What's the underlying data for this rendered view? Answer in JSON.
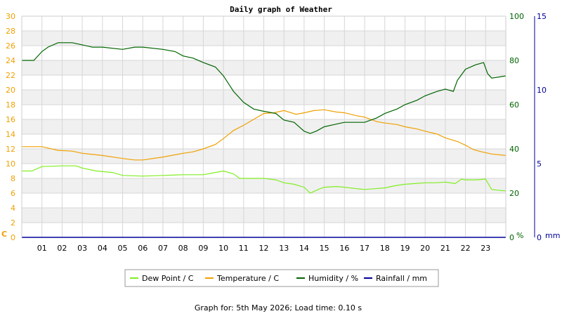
{
  "chart_data": {
    "type": "line",
    "title": "Daily graph of Weather",
    "footer": "Graph for: 5th May 2026; Load time: 0.10 s",
    "x_ticks": [
      "01",
      "02",
      "03",
      "04",
      "05",
      "06",
      "07",
      "08",
      "09",
      "10",
      "11",
      "12",
      "13",
      "14",
      "15",
      "16",
      "17",
      "18",
      "19",
      "20",
      "21",
      "22",
      "23"
    ],
    "x_range": [
      0,
      24
    ],
    "grid": true,
    "legend_position": "bottom",
    "axes": {
      "left": {
        "unit": "C",
        "color": "#f0a000",
        "range": [
          0,
          30
        ],
        "ticks": [
          "0",
          "2",
          "4",
          "6",
          "8",
          "10",
          "12",
          "14",
          "16",
          "18",
          "20",
          "22",
          "24",
          "26",
          "28",
          "30"
        ]
      },
      "right1": {
        "unit": "%",
        "color": "#006400",
        "range": [
          0,
          100
        ],
        "ticks": [
          "0",
          "20",
          "40",
          "60",
          "80",
          "100"
        ]
      },
      "right2": {
        "unit": "mm",
        "color": "#000099",
        "range": [
          0,
          15
        ],
        "ticks": [
          "0",
          "5",
          "10",
          "15"
        ]
      }
    },
    "series": [
      {
        "name": "Dew Point / C",
        "axis": "left",
        "color": "#80ee20",
        "points": [
          [
            0,
            9.0
          ],
          [
            0.5,
            9.0
          ],
          [
            1,
            9.6
          ],
          [
            2,
            9.7
          ],
          [
            2.7,
            9.7
          ],
          [
            3,
            9.4
          ],
          [
            3.7,
            9.0
          ],
          [
            4.5,
            8.8
          ],
          [
            5,
            8.4
          ],
          [
            6,
            8.3
          ],
          [
            7,
            8.4
          ],
          [
            8,
            8.5
          ],
          [
            9,
            8.5
          ],
          [
            9.6,
            8.8
          ],
          [
            10,
            9.0
          ],
          [
            10.5,
            8.6
          ],
          [
            10.8,
            8.0
          ],
          [
            11.5,
            8.0
          ],
          [
            12,
            8.0
          ],
          [
            12.6,
            7.8
          ],
          [
            13,
            7.4
          ],
          [
            13.5,
            7.2
          ],
          [
            14,
            6.8
          ],
          [
            14.3,
            6.0
          ],
          [
            14.7,
            6.5
          ],
          [
            15,
            6.8
          ],
          [
            15.6,
            6.9
          ],
          [
            16,
            6.8
          ],
          [
            16.6,
            6.6
          ],
          [
            17,
            6.5
          ],
          [
            17.5,
            6.6
          ],
          [
            18,
            6.7
          ],
          [
            18.5,
            7.0
          ],
          [
            19,
            7.2
          ],
          [
            19.5,
            7.3
          ],
          [
            20,
            7.4
          ],
          [
            20.5,
            7.4
          ],
          [
            21,
            7.5
          ],
          [
            21.5,
            7.3
          ],
          [
            21.8,
            7.9
          ],
          [
            22,
            7.8
          ],
          [
            22.5,
            7.8
          ],
          [
            23,
            7.9
          ],
          [
            23.3,
            6.5
          ],
          [
            23.6,
            6.4
          ],
          [
            24,
            6.3
          ]
        ]
      },
      {
        "name": "Temperature / C",
        "axis": "left",
        "color": "#f0a000",
        "points": [
          [
            0,
            12.3
          ],
          [
            1,
            12.3
          ],
          [
            1.8,
            11.8
          ],
          [
            2.5,
            11.7
          ],
          [
            3,
            11.4
          ],
          [
            4,
            11.1
          ],
          [
            5,
            10.7
          ],
          [
            5.6,
            10.5
          ],
          [
            6,
            10.5
          ],
          [
            7,
            10.9
          ],
          [
            8,
            11.4
          ],
          [
            8.5,
            11.6
          ],
          [
            9,
            12.0
          ],
          [
            9.6,
            12.6
          ],
          [
            10,
            13.4
          ],
          [
            10.5,
            14.5
          ],
          [
            11,
            15.2
          ],
          [
            11.5,
            16.0
          ],
          [
            12,
            16.8
          ],
          [
            12.5,
            16.9
          ],
          [
            13,
            17.2
          ],
          [
            13.6,
            16.7
          ],
          [
            14,
            16.9
          ],
          [
            14.5,
            17.2
          ],
          [
            15,
            17.3
          ],
          [
            15.6,
            17.0
          ],
          [
            16,
            16.9
          ],
          [
            16.6,
            16.5
          ],
          [
            17,
            16.3
          ],
          [
            17.6,
            15.7
          ],
          [
            18,
            15.5
          ],
          [
            18.6,
            15.3
          ],
          [
            19,
            15.0
          ],
          [
            19.6,
            14.7
          ],
          [
            20,
            14.4
          ],
          [
            20.6,
            14.0
          ],
          [
            21,
            13.5
          ],
          [
            21.6,
            13.0
          ],
          [
            22,
            12.5
          ],
          [
            22.4,
            11.9
          ],
          [
            22.8,
            11.6
          ],
          [
            23.3,
            11.3
          ],
          [
            24,
            11.1
          ]
        ]
      },
      {
        "name": "Humidity / %",
        "axis": "right1",
        "color": "#006400",
        "points": [
          [
            0,
            80
          ],
          [
            0.6,
            80
          ],
          [
            1,
            84
          ],
          [
            1.3,
            86
          ],
          [
            1.8,
            88
          ],
          [
            2.5,
            88
          ],
          [
            3,
            87
          ],
          [
            3.5,
            86
          ],
          [
            4,
            86
          ],
          [
            5,
            85
          ],
          [
            5.6,
            86
          ],
          [
            6,
            86
          ],
          [
            7,
            85
          ],
          [
            7.6,
            84
          ],
          [
            8,
            82
          ],
          [
            8.5,
            81
          ],
          [
            9,
            79
          ],
          [
            9.6,
            77
          ],
          [
            10,
            73
          ],
          [
            10.5,
            66
          ],
          [
            11,
            61
          ],
          [
            11.5,
            58
          ],
          [
            12,
            57
          ],
          [
            12.6,
            56
          ],
          [
            13,
            53
          ],
          [
            13.5,
            52
          ],
          [
            14,
            48
          ],
          [
            14.3,
            47
          ],
          [
            14.6,
            48
          ],
          [
            15,
            50
          ],
          [
            15.5,
            51
          ],
          [
            16,
            52
          ],
          [
            16.6,
            52
          ],
          [
            17,
            52
          ],
          [
            17.6,
            54
          ],
          [
            18,
            56
          ],
          [
            18.6,
            58
          ],
          [
            19,
            60
          ],
          [
            19.6,
            62
          ],
          [
            20,
            64
          ],
          [
            20.6,
            66
          ],
          [
            21,
            67
          ],
          [
            21.4,
            66
          ],
          [
            21.6,
            71
          ],
          [
            22,
            76
          ],
          [
            22.5,
            78
          ],
          [
            22.9,
            79
          ],
          [
            23.1,
            74
          ],
          [
            23.3,
            72
          ],
          [
            24,
            73
          ]
        ]
      },
      {
        "name": "Rainfall / mm",
        "axis": "right2",
        "color": "#000099",
        "points": [
          [
            0,
            0
          ],
          [
            24,
            0
          ]
        ]
      }
    ]
  }
}
